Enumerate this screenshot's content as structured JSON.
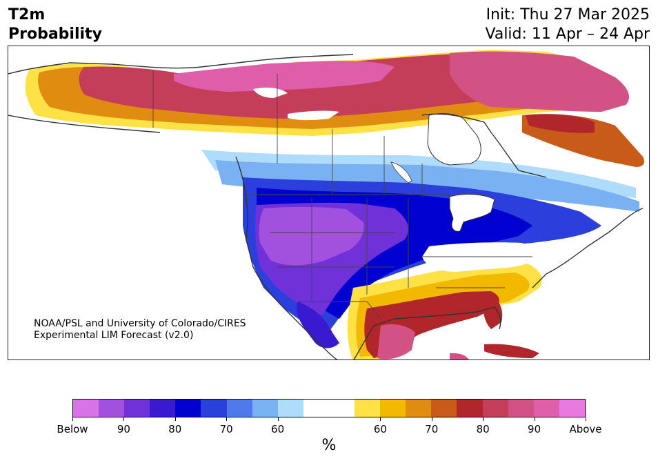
{
  "header": {
    "variable": "T2m",
    "product": "Probability",
    "init": "Init: Thu 27 Mar 2025",
    "valid": "Valid: 11 Apr – 24 Apr"
  },
  "credit": {
    "line1": "NOAA/PSL and University of Colorado/CIRES",
    "line2": "Experimental LIM Forecast (v2.0)"
  },
  "colorbar": {
    "unit": "%",
    "below_colors": [
      "#d874e8",
      "#a151de",
      "#7031d8",
      "#3a1ad0",
      "#0000d0",
      "#2b3fdd",
      "#4f7ae9",
      "#79b1f2",
      "#b0dcfb"
    ],
    "neutral_color": "#ffffff",
    "above_colors": [
      "#fde145",
      "#f3b800",
      "#df8c10",
      "#c85a1a",
      "#b0262a",
      "#c43d59",
      "#d25285",
      "#de5ea9",
      "#e97ae0"
    ],
    "tick_labels": [
      "Below",
      "90",
      "80",
      "70",
      "60",
      "60",
      "70",
      "80",
      "90",
      "Above"
    ]
  },
  "map": {
    "region": "North America",
    "colors": {
      "land": "#ffffff",
      "coast": "#333333",
      "border": "#444444"
    }
  }
}
